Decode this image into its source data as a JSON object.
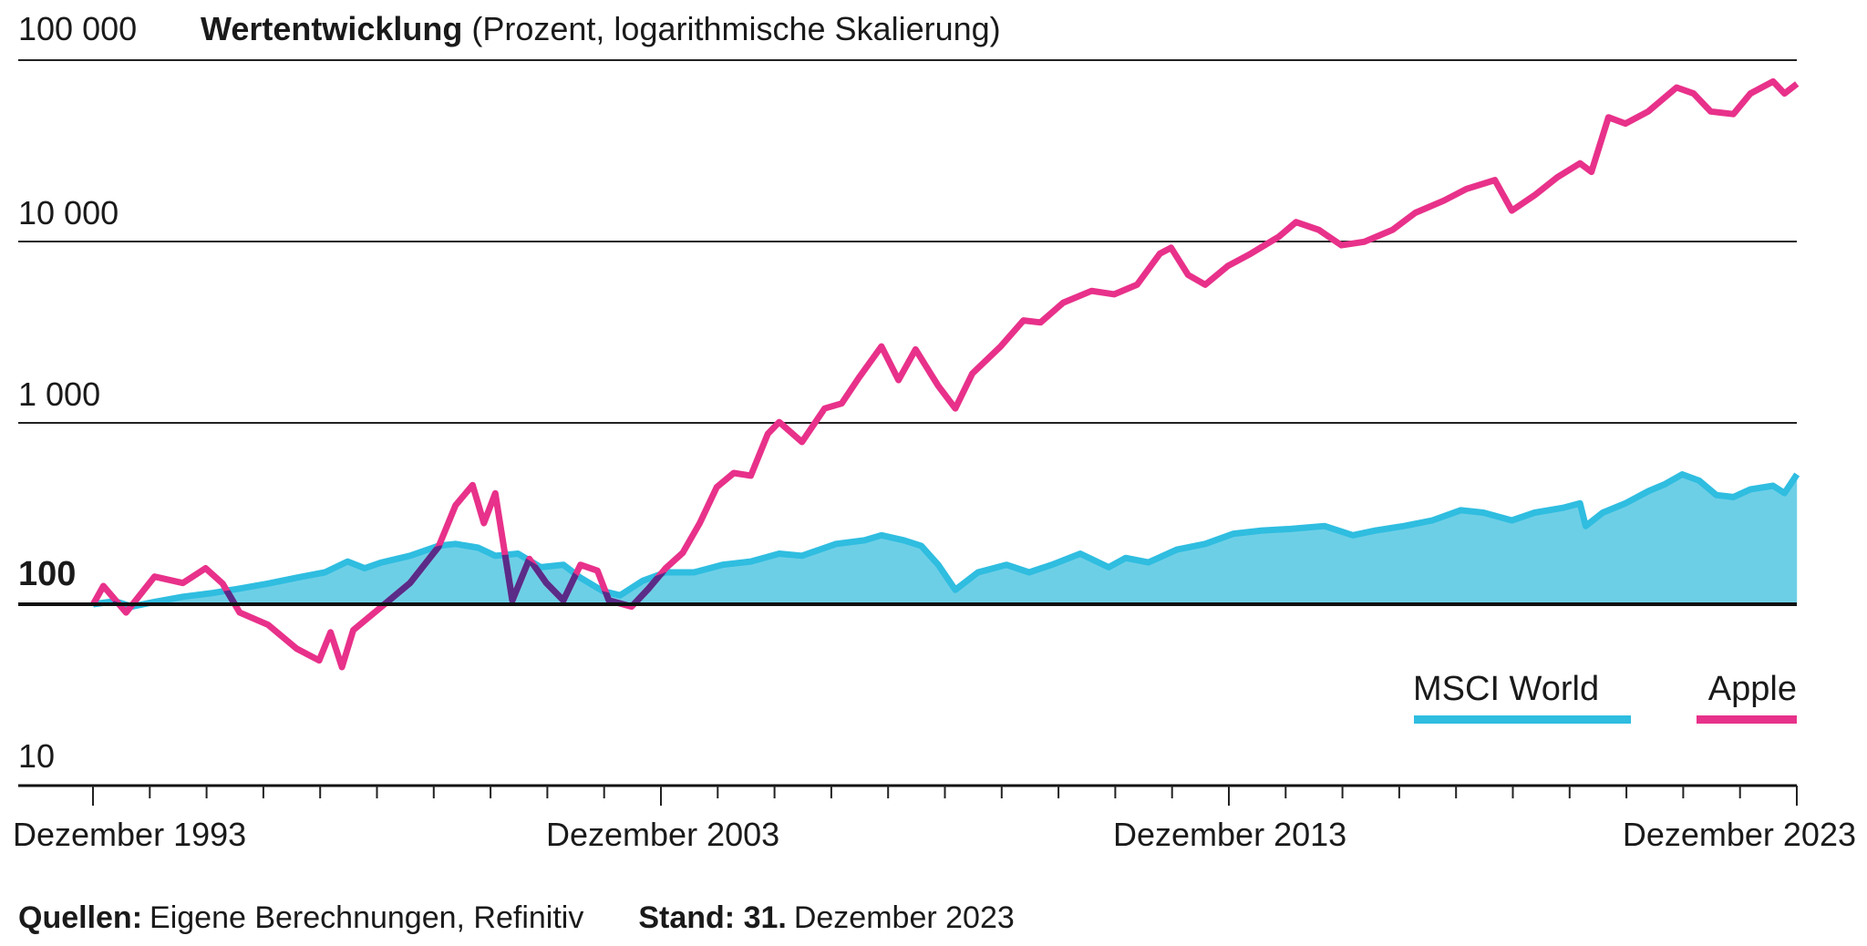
{
  "chart_data": {
    "type": "line",
    "title": "Wertentwicklung",
    "subtitle": "(Prozent, logarithmische Skalierung)",
    "yscale": "log",
    "ylim": [
      10,
      100000
    ],
    "y_ticks": [
      {
        "value": 100000,
        "label": "100 000"
      },
      {
        "value": 10000,
        "label": "10 000"
      },
      {
        "value": 1000,
        "label": "1 000"
      },
      {
        "value": 100,
        "label": "100"
      },
      {
        "value": 10,
        "label": "10"
      }
    ],
    "xlim": [
      1993.917,
      2023.917
    ],
    "x_ticks": [
      {
        "value": 1993.917,
        "label": "Dezember 1993"
      },
      {
        "value": 2003.917,
        "label": "Dezember 2003"
      },
      {
        "value": 2013.917,
        "label": "Dezember 2013"
      },
      {
        "value": 2023.917,
        "label": "Dezember 2023"
      }
    ],
    "grid": true,
    "legend_placement": "bottom-right",
    "series": [
      {
        "name": "MSCI World",
        "color": "#2fbde0",
        "fill": "#6dcfe6",
        "points": [
          [
            1993.92,
            100
          ],
          [
            1994.3,
            104
          ],
          [
            1994.6,
            97
          ],
          [
            1995.0,
            103
          ],
          [
            1995.5,
            110
          ],
          [
            1996.0,
            115
          ],
          [
            1996.5,
            122
          ],
          [
            1997.0,
            130
          ],
          [
            1997.5,
            140
          ],
          [
            1998.0,
            150
          ],
          [
            1998.4,
            172
          ],
          [
            1998.7,
            158
          ],
          [
            1999.0,
            170
          ],
          [
            1999.5,
            185
          ],
          [
            2000.0,
            210
          ],
          [
            2000.3,
            215
          ],
          [
            2000.7,
            205
          ],
          [
            2001.0,
            185
          ],
          [
            2001.4,
            190
          ],
          [
            2001.8,
            160
          ],
          [
            2002.2,
            165
          ],
          [
            2002.5,
            140
          ],
          [
            2002.9,
            118
          ],
          [
            2003.2,
            112
          ],
          [
            2003.6,
            135
          ],
          [
            2004.0,
            150
          ],
          [
            2004.5,
            150
          ],
          [
            2005.0,
            165
          ],
          [
            2005.5,
            172
          ],
          [
            2006.0,
            190
          ],
          [
            2006.4,
            185
          ],
          [
            2007.0,
            215
          ],
          [
            2007.5,
            225
          ],
          [
            2007.8,
            240
          ],
          [
            2008.2,
            225
          ],
          [
            2008.5,
            210
          ],
          [
            2008.8,
            165
          ],
          [
            2009.1,
            120
          ],
          [
            2009.5,
            150
          ],
          [
            2010.0,
            165
          ],
          [
            2010.4,
            150
          ],
          [
            2010.8,
            165
          ],
          [
            2011.3,
            190
          ],
          [
            2011.8,
            160
          ],
          [
            2012.1,
            180
          ],
          [
            2012.5,
            170
          ],
          [
            2013.0,
            200
          ],
          [
            2013.5,
            215
          ],
          [
            2014.0,
            245
          ],
          [
            2014.5,
            255
          ],
          [
            2015.0,
            260
          ],
          [
            2015.6,
            270
          ],
          [
            2016.1,
            240
          ],
          [
            2016.5,
            255
          ],
          [
            2017.0,
            270
          ],
          [
            2017.5,
            290
          ],
          [
            2018.0,
            330
          ],
          [
            2018.4,
            320
          ],
          [
            2018.9,
            290
          ],
          [
            2019.3,
            320
          ],
          [
            2019.8,
            340
          ],
          [
            2020.1,
            360
          ],
          [
            2020.2,
            270
          ],
          [
            2020.5,
            320
          ],
          [
            2020.9,
            360
          ],
          [
            2021.3,
            420
          ],
          [
            2021.6,
            460
          ],
          [
            2021.9,
            520
          ],
          [
            2022.2,
            480
          ],
          [
            2022.5,
            400
          ],
          [
            2022.8,
            390
          ],
          [
            2023.1,
            430
          ],
          [
            2023.5,
            450
          ],
          [
            2023.7,
            410
          ],
          [
            2023.92,
            520
          ]
        ]
      },
      {
        "name": "Apple",
        "color": "#e8318a",
        "points": [
          [
            1993.92,
            100
          ],
          [
            1994.1,
            126
          ],
          [
            1994.5,
            90
          ],
          [
            1995.0,
            142
          ],
          [
            1995.5,
            131
          ],
          [
            1995.9,
            158
          ],
          [
            1996.2,
            130
          ],
          [
            1996.5,
            90
          ],
          [
            1997.0,
            77
          ],
          [
            1997.5,
            57
          ],
          [
            1997.9,
            49
          ],
          [
            1998.1,
            70
          ],
          [
            1998.3,
            45
          ],
          [
            1998.5,
            72
          ],
          [
            1999.0,
            97
          ],
          [
            1999.5,
            131
          ],
          [
            2000.0,
            207
          ],
          [
            2000.3,
            351
          ],
          [
            2000.6,
            454
          ],
          [
            2000.8,
            280
          ],
          [
            2001.0,
            409
          ],
          [
            2001.3,
            105
          ],
          [
            2001.6,
            178
          ],
          [
            2001.9,
            131
          ],
          [
            2002.2,
            105
          ],
          [
            2002.5,
            165
          ],
          [
            2002.8,
            153
          ],
          [
            2003.0,
            105
          ],
          [
            2003.4,
            97
          ],
          [
            2003.7,
            122
          ],
          [
            2004.0,
            158
          ],
          [
            2004.3,
            192
          ],
          [
            2004.6,
            280
          ],
          [
            2004.9,
            442
          ],
          [
            2005.2,
            529
          ],
          [
            2005.5,
            512
          ],
          [
            2005.8,
            871
          ],
          [
            2006.0,
            1010
          ],
          [
            2006.4,
            784
          ],
          [
            2006.8,
            1200
          ],
          [
            2007.1,
            1280
          ],
          [
            2007.4,
            1770
          ],
          [
            2007.8,
            2640
          ],
          [
            2008.1,
            1720
          ],
          [
            2008.4,
            2540
          ],
          [
            2008.8,
            1600
          ],
          [
            2009.1,
            1200
          ],
          [
            2009.4,
            1870
          ],
          [
            2009.9,
            2640
          ],
          [
            2010.3,
            3670
          ],
          [
            2010.6,
            3580
          ],
          [
            2011.0,
            4600
          ],
          [
            2011.5,
            5340
          ],
          [
            2011.9,
            5120
          ],
          [
            2012.3,
            5780
          ],
          [
            2012.7,
            8560
          ],
          [
            2012.9,
            9240
          ],
          [
            2013.2,
            6550
          ],
          [
            2013.5,
            5780
          ],
          [
            2013.9,
            7330
          ],
          [
            2014.3,
            8560
          ],
          [
            2014.8,
            10640
          ],
          [
            2015.1,
            12800
          ],
          [
            2015.5,
            11600
          ],
          [
            2015.9,
            9540
          ],
          [
            2016.3,
            9970
          ],
          [
            2016.8,
            11600
          ],
          [
            2017.2,
            14400
          ],
          [
            2017.7,
            16800
          ],
          [
            2018.1,
            19500
          ],
          [
            2018.6,
            21800
          ],
          [
            2018.9,
            14800
          ],
          [
            2019.3,
            18000
          ],
          [
            2019.7,
            22600
          ],
          [
            2020.1,
            27000
          ],
          [
            2020.3,
            24200
          ],
          [
            2020.6,
            48400
          ],
          [
            2020.9,
            44700
          ],
          [
            2021.3,
            52100
          ],
          [
            2021.8,
            70700
          ],
          [
            2022.1,
            65500
          ],
          [
            2022.4,
            52100
          ],
          [
            2022.8,
            50400
          ],
          [
            2023.1,
            65500
          ],
          [
            2023.5,
            76300
          ],
          [
            2023.7,
            65500
          ],
          [
            2023.92,
            74000
          ]
        ]
      }
    ],
    "source_label": "Quellen:",
    "source_text": "Eigene Berechnungen, Refinitiv",
    "date_label": "Stand: 31.",
    "date_text": "Dezember 2023"
  }
}
